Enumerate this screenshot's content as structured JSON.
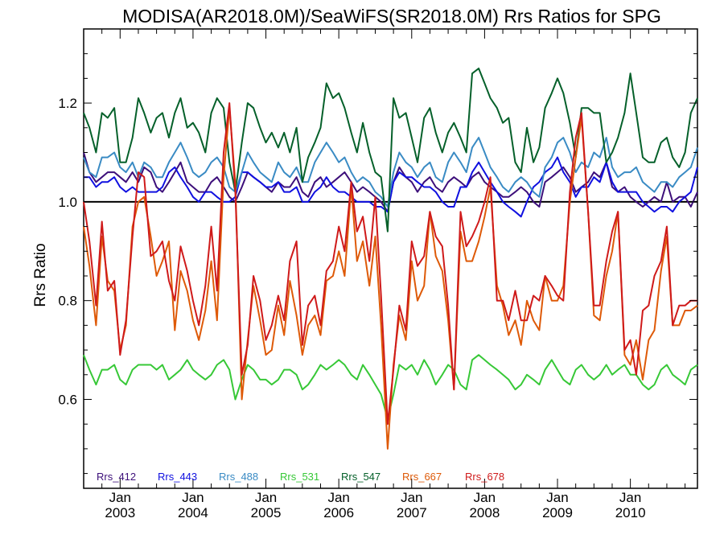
{
  "chart_data": {
    "type": "line",
    "title": "MODISA(AR2018.0M)/SeaWiFS(SR2018.0M)  Rrs Ratios for SPG",
    "ylabel": "Rrs Ratio",
    "xlabel": "",
    "xlim": [
      2002.5,
      2010.92
    ],
    "ylim": [
      0.42,
      1.35
    ],
    "yticks": [
      0.6,
      0.8,
      1.0,
      1.2
    ],
    "ytick_labels": [
      "0.6",
      "0.8",
      "1.0",
      "1.2"
    ],
    "xticks": [
      {
        "x": 2003,
        "month": "Jan",
        "year": "2003"
      },
      {
        "x": 2004,
        "month": "Jan",
        "year": "2004"
      },
      {
        "x": 2005,
        "month": "Jan",
        "year": "2005"
      },
      {
        "x": 2006,
        "month": "Jan",
        "year": "2006"
      },
      {
        "x": 2007,
        "month": "Jan",
        "year": "2007"
      },
      {
        "x": 2008,
        "month": "Jan",
        "year": "2008"
      },
      {
        "x": 2009,
        "month": "Jan",
        "year": "2009"
      },
      {
        "x": 2010,
        "month": "Jan",
        "year": "2010"
      }
    ],
    "reference_line": 1.0,
    "legend_position": "bottom-left",
    "grid": false,
    "x": [
      2002.5,
      2002.58,
      2002.67,
      2002.75,
      2002.83,
      2002.92,
      2003.0,
      2003.08,
      2003.17,
      2003.25,
      2003.33,
      2003.42,
      2003.5,
      2003.58,
      2003.67,
      2003.75,
      2003.83,
      2003.92,
      2004.0,
      2004.08,
      2004.17,
      2004.25,
      2004.33,
      2004.42,
      2004.5,
      2004.58,
      2004.67,
      2004.75,
      2004.83,
      2004.92,
      2005.0,
      2005.08,
      2005.17,
      2005.25,
      2005.33,
      2005.42,
      2005.5,
      2005.58,
      2005.67,
      2005.75,
      2005.83,
      2005.92,
      2006.0,
      2006.08,
      2006.17,
      2006.25,
      2006.33,
      2006.42,
      2006.5,
      2006.58,
      2006.67,
      2006.75,
      2006.83,
      2006.92,
      2007.0,
      2007.08,
      2007.17,
      2007.25,
      2007.33,
      2007.42,
      2007.5,
      2007.58,
      2007.67,
      2007.75,
      2007.83,
      2007.92,
      2008.0,
      2008.08,
      2008.17,
      2008.25,
      2008.33,
      2008.42,
      2008.5,
      2008.58,
      2008.67,
      2008.75,
      2008.83,
      2008.92,
      2009.0,
      2009.08,
      2009.17,
      2009.25,
      2009.33,
      2009.42,
      2009.5,
      2009.58,
      2009.67,
      2009.75,
      2009.83,
      2009.92,
      2010.0,
      2010.08,
      2010.17,
      2010.25,
      2010.33,
      2010.42,
      2010.5,
      2010.58,
      2010.67,
      2010.75,
      2010.83,
      2010.92
    ],
    "series": [
      {
        "name": "Rrs_412",
        "color": "#3d0f7a",
        "values": [
          1.1,
          1.06,
          1.04,
          1.05,
          1.06,
          1.06,
          1.05,
          1.04,
          1.06,
          1.04,
          1.07,
          1.06,
          1.03,
          1.02,
          1.04,
          1.06,
          1.08,
          1.04,
          1.03,
          1.02,
          1.02,
          1.04,
          1.05,
          1.03,
          1.01,
          1.0,
          1.03,
          1.06,
          1.05,
          1.04,
          1.03,
          1.02,
          1.04,
          1.03,
          1.03,
          1.05,
          1.02,
          1.01,
          1.04,
          1.05,
          1.03,
          1.04,
          1.05,
          1.06,
          1.04,
          1.02,
          1.03,
          1.02,
          1.01,
          1.0,
          0.98,
          1.04,
          1.07,
          1.05,
          1.04,
          1.02,
          1.04,
          1.05,
          1.03,
          1.02,
          1.04,
          1.05,
          1.04,
          1.03,
          1.05,
          1.06,
          1.04,
          1.03,
          1.02,
          1.01,
          1.01,
          1.02,
          1.03,
          1.02,
          1.0,
          0.99,
          1.04,
          1.05,
          1.06,
          1.07,
          1.05,
          1.02,
          1.03,
          1.04,
          1.06,
          1.05,
          1.08,
          1.03,
          1.02,
          1.03,
          1.01,
          1.0,
          0.99,
          1.0,
          1.01,
          1.0,
          1.04,
          1.0,
          1.01,
          1.01,
          0.99,
          1.02
        ]
      },
      {
        "name": "Rrs_443",
        "color": "#1010e0",
        "values": [
          1.05,
          1.05,
          1.03,
          1.04,
          1.04,
          1.05,
          1.03,
          1.02,
          1.03,
          1.02,
          1.02,
          1.02,
          1.02,
          1.03,
          1.06,
          1.07,
          1.05,
          1.03,
          1.01,
          1.0,
          1.02,
          1.02,
          1.01,
          1.0,
          1.0,
          1.01,
          1.06,
          1.06,
          1.05,
          1.04,
          1.03,
          1.03,
          1.04,
          1.02,
          1.02,
          1.03,
          1.0,
          1.0,
          1.02,
          1.03,
          1.05,
          1.03,
          1.02,
          1.02,
          1.01,
          1.0,
          1.0,
          1.0,
          0.99,
          0.99,
          0.98,
          1.04,
          1.06,
          1.05,
          1.05,
          1.04,
          1.03,
          1.03,
          1.02,
          1.0,
          0.99,
          0.99,
          1.03,
          1.03,
          1.06,
          1.08,
          1.06,
          1.04,
          1.02,
          1.0,
          0.99,
          0.98,
          0.97,
          1.0,
          1.03,
          1.04,
          1.06,
          1.07,
          1.09,
          1.06,
          1.04,
          1.01,
          1.03,
          1.03,
          1.05,
          1.04,
          1.08,
          1.04,
          1.02,
          1.02,
          1.02,
          1.02,
          1.0,
          0.99,
          0.98,
          0.99,
          0.99,
          0.98,
          1.0,
          1.01,
          1.02,
          1.07
        ]
      },
      {
        "name": "Rrs_488",
        "color": "#3a8bc4",
        "values": [
          1.09,
          1.06,
          1.05,
          1.09,
          1.09,
          1.1,
          1.07,
          1.06,
          1.08,
          1.05,
          1.08,
          1.07,
          1.05,
          1.05,
          1.08,
          1.1,
          1.12,
          1.09,
          1.06,
          1.05,
          1.06,
          1.08,
          1.09,
          1.07,
          1.03,
          1.02,
          1.06,
          1.1,
          1.08,
          1.06,
          1.05,
          1.04,
          1.08,
          1.06,
          1.05,
          1.07,
          1.04,
          1.04,
          1.08,
          1.1,
          1.12,
          1.1,
          1.08,
          1.09,
          1.06,
          1.04,
          1.05,
          1.04,
          1.02,
          1.01,
          0.99,
          1.06,
          1.1,
          1.08,
          1.07,
          1.05,
          1.07,
          1.08,
          1.05,
          1.04,
          1.08,
          1.1,
          1.08,
          1.06,
          1.11,
          1.13,
          1.1,
          1.07,
          1.05,
          1.03,
          1.02,
          1.04,
          1.05,
          1.04,
          1.02,
          1.01,
          1.07,
          1.09,
          1.12,
          1.13,
          1.1,
          1.06,
          1.08,
          1.07,
          1.1,
          1.09,
          1.13,
          1.07,
          1.05,
          1.06,
          1.06,
          1.07,
          1.04,
          1.03,
          1.02,
          1.04,
          1.04,
          1.03,
          1.05,
          1.06,
          1.07,
          1.11
        ]
      },
      {
        "name": "Rrs_531",
        "color": "#37c837",
        "values": [
          0.69,
          0.66,
          0.63,
          0.66,
          0.66,
          0.67,
          0.64,
          0.63,
          0.66,
          0.67,
          0.67,
          0.67,
          0.66,
          0.67,
          0.64,
          0.65,
          0.66,
          0.68,
          0.66,
          0.65,
          0.64,
          0.65,
          0.67,
          0.68,
          0.66,
          0.6,
          0.64,
          0.67,
          0.66,
          0.64,
          0.64,
          0.63,
          0.64,
          0.66,
          0.66,
          0.65,
          0.62,
          0.63,
          0.65,
          0.67,
          0.66,
          0.67,
          0.68,
          0.67,
          0.65,
          0.64,
          0.67,
          0.65,
          0.63,
          0.61,
          0.56,
          0.61,
          0.67,
          0.66,
          0.67,
          0.65,
          0.68,
          0.66,
          0.63,
          0.65,
          0.67,
          0.66,
          0.63,
          0.62,
          0.68,
          0.69,
          0.68,
          0.67,
          0.66,
          0.65,
          0.64,
          0.62,
          0.63,
          0.65,
          0.64,
          0.63,
          0.66,
          0.68,
          0.66,
          0.64,
          0.63,
          0.66,
          0.67,
          0.65,
          0.64,
          0.65,
          0.67,
          0.65,
          0.66,
          0.67,
          0.65,
          0.65,
          0.63,
          0.62,
          0.63,
          0.66,
          0.67,
          0.65,
          0.64,
          0.63,
          0.66,
          0.67
        ]
      },
      {
        "name": "Rrs_547",
        "color": "#05602a",
        "values": [
          1.18,
          1.15,
          1.1,
          1.18,
          1.17,
          1.19,
          1.08,
          1.08,
          1.13,
          1.21,
          1.18,
          1.14,
          1.17,
          1.18,
          1.13,
          1.18,
          1.21,
          1.15,
          1.16,
          1.14,
          1.1,
          1.18,
          1.21,
          1.19,
          1.08,
          1.02,
          1.12,
          1.2,
          1.19,
          1.15,
          1.12,
          1.14,
          1.11,
          1.14,
          1.1,
          1.15,
          1.04,
          1.09,
          1.12,
          1.15,
          1.24,
          1.21,
          1.22,
          1.19,
          1.14,
          1.1,
          1.16,
          1.1,
          1.06,
          1.05,
          0.94,
          1.21,
          1.17,
          1.18,
          1.13,
          1.08,
          1.17,
          1.19,
          1.14,
          1.1,
          1.14,
          1.16,
          1.13,
          1.1,
          1.26,
          1.27,
          1.24,
          1.21,
          1.19,
          1.16,
          1.17,
          1.08,
          1.06,
          1.15,
          1.08,
          1.11,
          1.19,
          1.22,
          1.25,
          1.22,
          1.16,
          1.09,
          1.19,
          1.19,
          1.18,
          1.18,
          1.08,
          1.1,
          1.13,
          1.18,
          1.26,
          1.18,
          1.09,
          1.08,
          1.08,
          1.12,
          1.13,
          1.09,
          1.07,
          1.1,
          1.18,
          1.21
        ]
      },
      {
        "name": "Rrs_667",
        "color": "#de5a08",
        "values": [
          0.95,
          0.87,
          0.75,
          0.93,
          0.84,
          0.82,
          0.7,
          0.75,
          0.95,
          1.0,
          1.01,
          0.93,
          0.85,
          0.88,
          0.92,
          0.74,
          0.86,
          0.82,
          0.76,
          0.72,
          0.78,
          0.88,
          0.76,
          1.05,
          1.19,
          1.04,
          0.6,
          0.72,
          0.83,
          0.76,
          0.69,
          0.7,
          0.79,
          0.73,
          0.84,
          0.77,
          0.69,
          0.75,
          0.77,
          0.73,
          0.84,
          0.85,
          0.9,
          0.85,
          1.03,
          0.88,
          0.92,
          0.83,
          0.93,
          0.75,
          0.5,
          0.67,
          0.77,
          0.72,
          0.88,
          0.8,
          0.83,
          0.98,
          0.89,
          0.86,
          0.76,
          0.62,
          0.94,
          0.88,
          0.88,
          0.92,
          0.97,
          1.03,
          0.83,
          0.79,
          0.73,
          0.76,
          0.71,
          0.8,
          0.76,
          0.74,
          0.85,
          0.8,
          0.8,
          0.83,
          1.0,
          1.09,
          1.17,
          0.98,
          0.77,
          0.76,
          0.85,
          0.9,
          0.98,
          0.69,
          0.67,
          0.72,
          0.64,
          0.72,
          0.74,
          0.86,
          0.93,
          0.75,
          0.75,
          0.78,
          0.78,
          0.79
        ]
      },
      {
        "name": "Rrs_678",
        "color": "#cf1a1a",
        "values": [
          1.0,
          0.92,
          0.79,
          0.96,
          0.82,
          0.84,
          0.69,
          0.76,
          0.93,
          1.06,
          1.05,
          0.89,
          0.9,
          0.92,
          0.84,
          0.8,
          0.91,
          0.86,
          0.8,
          0.75,
          0.83,
          0.95,
          0.82,
          1.1,
          1.2,
          1.02,
          0.65,
          0.71,
          0.85,
          0.8,
          0.72,
          0.75,
          0.81,
          0.76,
          0.88,
          0.92,
          0.71,
          0.79,
          0.81,
          0.75,
          0.86,
          0.88,
          0.95,
          0.9,
          1.04,
          0.94,
          0.97,
          0.88,
          1.01,
          0.81,
          0.55,
          0.66,
          0.79,
          0.74,
          0.92,
          0.87,
          0.89,
          0.98,
          0.93,
          0.91,
          0.79,
          0.62,
          0.98,
          0.91,
          0.93,
          0.96,
          1.0,
          1.05,
          0.8,
          0.8,
          0.76,
          0.82,
          0.76,
          0.76,
          0.81,
          0.8,
          0.85,
          0.83,
          0.81,
          0.8,
          1.02,
          1.13,
          1.18,
          0.98,
          0.79,
          0.79,
          0.88,
          0.94,
          0.98,
          0.7,
          0.72,
          0.65,
          0.78,
          0.79,
          0.85,
          0.88,
          0.95,
          0.75,
          0.79,
          0.79,
          0.8,
          0.8
        ]
      }
    ]
  }
}
